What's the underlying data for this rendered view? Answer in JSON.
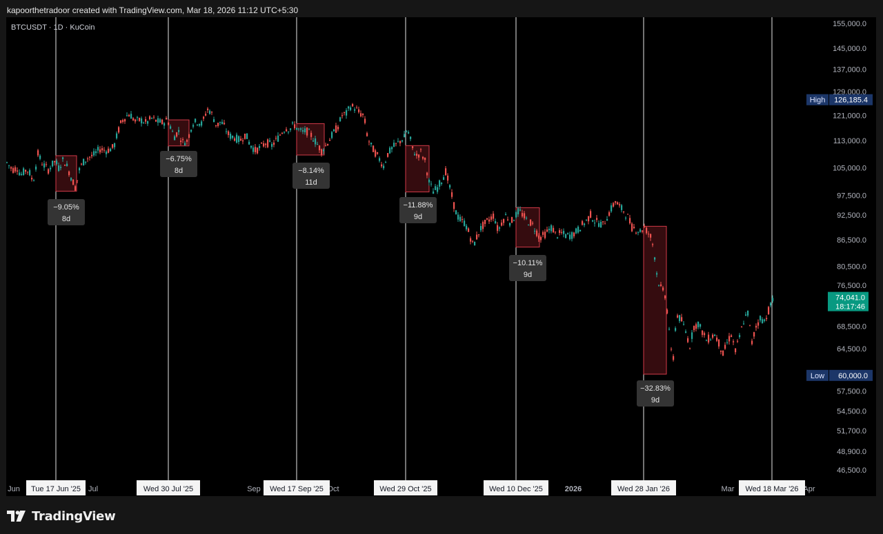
{
  "header": {
    "caption": "kapoorthetradoor created with TradingView.com, Mar 18, 2026 11:12 UTC+5:30"
  },
  "chart_data": {
    "type": "candlestick",
    "symbol_label": "BTCUSDT · 1D · KuCoin",
    "y_ticks": [
      155000,
      145000,
      137000,
      129000,
      121000,
      113000,
      105000,
      97500,
      92500,
      86500,
      80500,
      76500,
      68500,
      64500,
      60000,
      57500,
      54500,
      51700,
      48900,
      46500
    ],
    "y_tick_labels": [
      "155,000.0",
      "145,000.0",
      "137,000.0",
      "129,000.0",
      "121,000.0",
      "113,000.0",
      "105,000.0",
      "97,500.0",
      "92,500.0",
      "86,500.0",
      "80,500.0",
      "76,500.0",
      "68,500.0",
      "64,500.0",
      "60,000.0",
      "57,500.0",
      "54,500.0",
      "51,700.0",
      "48,900.0",
      "46,500.0"
    ],
    "x_axis_labels": [
      "Jun",
      "Jul",
      "Sep",
      "Oct",
      "2026",
      "Mar",
      "Apr"
    ],
    "x_markers": [
      "Tue 17 Jun '25",
      "Wed 30 Jul '25",
      "Wed 17 Sep '25",
      "Wed 29 Oct '25",
      "Wed 10 Dec '25",
      "Wed 28 Jan '26",
      "Wed 18 Mar '26"
    ],
    "high": {
      "label": "High",
      "value": "126,185.4"
    },
    "low": {
      "label": "Low",
      "value": "60,000.0"
    },
    "last_price": {
      "value": "74,041.0",
      "countdown": "18:17:46"
    },
    "drawdowns": [
      {
        "pct": "−9.05%",
        "days": "8d",
        "top": 108500,
        "bottom": 98600
      },
      {
        "pct": "−6.75%",
        "days": "8d",
        "top": 119500,
        "bottom": 111400
      },
      {
        "pct": "−8.14%",
        "days": "11d",
        "top": 118300,
        "bottom": 108700
      },
      {
        "pct": "−11.88%",
        "days": "9d",
        "top": 111500,
        "bottom": 98400
      },
      {
        "pct": "−10.11%",
        "days": "9d",
        "top": 94300,
        "bottom": 84800
      },
      {
        "pct": "−32.83%",
        "days": "9d",
        "top": 89700,
        "bottom": 60200
      }
    ],
    "path": [
      [
        0,
        106500
      ],
      [
        8,
        104500
      ],
      [
        15,
        105000
      ],
      [
        20,
        103000
      ],
      [
        28,
        104500
      ],
      [
        32,
        104000
      ],
      [
        38,
        101000
      ],
      [
        45,
        109000
      ],
      [
        52,
        106000
      ],
      [
        60,
        104500
      ],
      [
        70,
        107000
      ],
      [
        75,
        105000
      ],
      [
        82,
        107500
      ],
      [
        88,
        105000
      ],
      [
        94,
        102000
      ],
      [
        100,
        99200
      ],
      [
        104,
        104000
      ],
      [
        110,
        106500
      ],
      [
        118,
        108000
      ],
      [
        125,
        108500
      ],
      [
        135,
        110500
      ],
      [
        145,
        110000
      ],
      [
        155,
        111000
      ],
      [
        160,
        115000
      ],
      [
        166,
        119000
      ],
      [
        172,
        120500
      ],
      [
        178,
        121500
      ],
      [
        186,
        119000
      ],
      [
        194,
        119500
      ],
      [
        202,
        118500
      ],
      [
        210,
        120000
      ],
      [
        218,
        119000
      ],
      [
        226,
        118500
      ],
      [
        232,
        119500
      ],
      [
        236,
        118000
      ],
      [
        240,
        115500
      ],
      [
        244,
        114000
      ],
      [
        248,
        116500
      ],
      [
        254,
        112500
      ],
      [
        262,
        113000
      ],
      [
        266,
        116500
      ],
      [
        270,
        118500
      ],
      [
        277,
        119000
      ],
      [
        283,
        118000
      ],
      [
        290,
        123000
      ],
      [
        294,
        122500
      ],
      [
        298,
        121000
      ],
      [
        304,
        117500
      ],
      [
        310,
        119000
      ],
      [
        316,
        117000
      ],
      [
        322,
        114500
      ],
      [
        330,
        114000
      ],
      [
        338,
        113000
      ],
      [
        346,
        115000
      ],
      [
        352,
        112000
      ],
      [
        360,
        110000
      ],
      [
        368,
        111000
      ],
      [
        376,
        112500
      ],
      [
        384,
        111500
      ],
      [
        392,
        113500
      ],
      [
        398,
        115500
      ],
      [
        404,
        117000
      ],
      [
        410,
        116500
      ],
      [
        416,
        118000
      ],
      [
        422,
        116500
      ],
      [
        428,
        115500
      ],
      [
        434,
        116000
      ],
      [
        440,
        115000
      ],
      [
        448,
        112500
      ],
      [
        456,
        110000
      ],
      [
        462,
        111500
      ],
      [
        468,
        113500
      ],
      [
        474,
        115500
      ],
      [
        480,
        117500
      ],
      [
        486,
        121000
      ],
      [
        492,
        121500
      ],
      [
        498,
        124000
      ],
      [
        504,
        123500
      ],
      [
        510,
        122000
      ],
      [
        516,
        121000
      ],
      [
        520,
        118000
      ],
      [
        522,
        115000
      ],
      [
        526,
        112000
      ],
      [
        532,
        110000
      ],
      [
        540,
        107500
      ],
      [
        546,
        105500
      ],
      [
        552,
        109000
      ],
      [
        560,
        111000
      ],
      [
        568,
        112500
      ],
      [
        576,
        114000
      ],
      [
        580,
        116500
      ],
      [
        584,
        114000
      ],
      [
        588,
        110500
      ],
      [
        594,
        108500
      ],
      [
        600,
        109500
      ],
      [
        606,
        107000
      ],
      [
        612,
        101000
      ],
      [
        618,
        98500
      ],
      [
        624,
        99500
      ],
      [
        630,
        101500
      ],
      [
        636,
        104000
      ],
      [
        642,
        99500
      ],
      [
        648,
        95000
      ],
      [
        652,
        92500
      ],
      [
        658,
        91000
      ],
      [
        664,
        90500
      ],
      [
        670,
        88000
      ],
      [
        676,
        85000
      ],
      [
        682,
        87500
      ],
      [
        688,
        89500
      ],
      [
        694,
        90500
      ],
      [
        700,
        91500
      ],
      [
        706,
        92500
      ],
      [
        712,
        88500
      ],
      [
        718,
        91000
      ],
      [
        724,
        92500
      ],
      [
        730,
        90500
      ],
      [
        736,
        92000
      ],
      [
        742,
        93500
      ],
      [
        748,
        92500
      ],
      [
        754,
        91000
      ],
      [
        760,
        90500
      ],
      [
        766,
        89000
      ],
      [
        772,
        87000
      ],
      [
        778,
        87500
      ],
      [
        784,
        88500
      ],
      [
        790,
        89500
      ],
      [
        796,
        87500
      ],
      [
        804,
        88000
      ],
      [
        810,
        87500
      ],
      [
        818,
        87500
      ],
      [
        826,
        88500
      ],
      [
        834,
        90000
      ],
      [
        840,
        91000
      ],
      [
        846,
        92500
      ],
      [
        852,
        91000
      ],
      [
        858,
        90500
      ],
      [
        864,
        90000
      ],
      [
        870,
        92000
      ],
      [
        876,
        94000
      ],
      [
        882,
        96000
      ],
      [
        888,
        94500
      ],
      [
        894,
        93500
      ],
      [
        900,
        92000
      ],
      [
        906,
        89500
      ],
      [
        912,
        89000
      ],
      [
        918,
        88500
      ],
      [
        924,
        89500
      ],
      [
        930,
        88000
      ],
      [
        934,
        87000
      ],
      [
        938,
        84000
      ],
      [
        942,
        79000
      ],
      [
        946,
        76500
      ],
      [
        950,
        75500
      ],
      [
        954,
        74500
      ],
      [
        958,
        70500
      ],
      [
        961,
        67000
      ],
      [
        965,
        60500
      ],
      [
        968,
        67500
      ],
      [
        972,
        70500
      ],
      [
        978,
        69500
      ],
      [
        984,
        67500
      ],
      [
        990,
        65000
      ],
      [
        996,
        68500
      ],
      [
        1002,
        69000
      ],
      [
        1008,
        67500
      ],
      [
        1014,
        66000
      ],
      [
        1020,
        66500
      ],
      [
        1026,
        67000
      ],
      [
        1032,
        65500
      ],
      [
        1038,
        63500
      ],
      [
        1044,
        65500
      ],
      [
        1050,
        67000
      ],
      [
        1056,
        64000
      ],
      [
        1062,
        66500
      ],
      [
        1068,
        69500
      ],
      [
        1074,
        71000
      ],
      [
        1080,
        65500
      ],
      [
        1086,
        68500
      ],
      [
        1092,
        70000
      ],
      [
        1098,
        69500
      ],
      [
        1104,
        71500
      ],
      [
        1110,
        73500
      ],
      [
        1116,
        74000
      ]
    ]
  },
  "footer": {
    "brand": "TradingView"
  }
}
